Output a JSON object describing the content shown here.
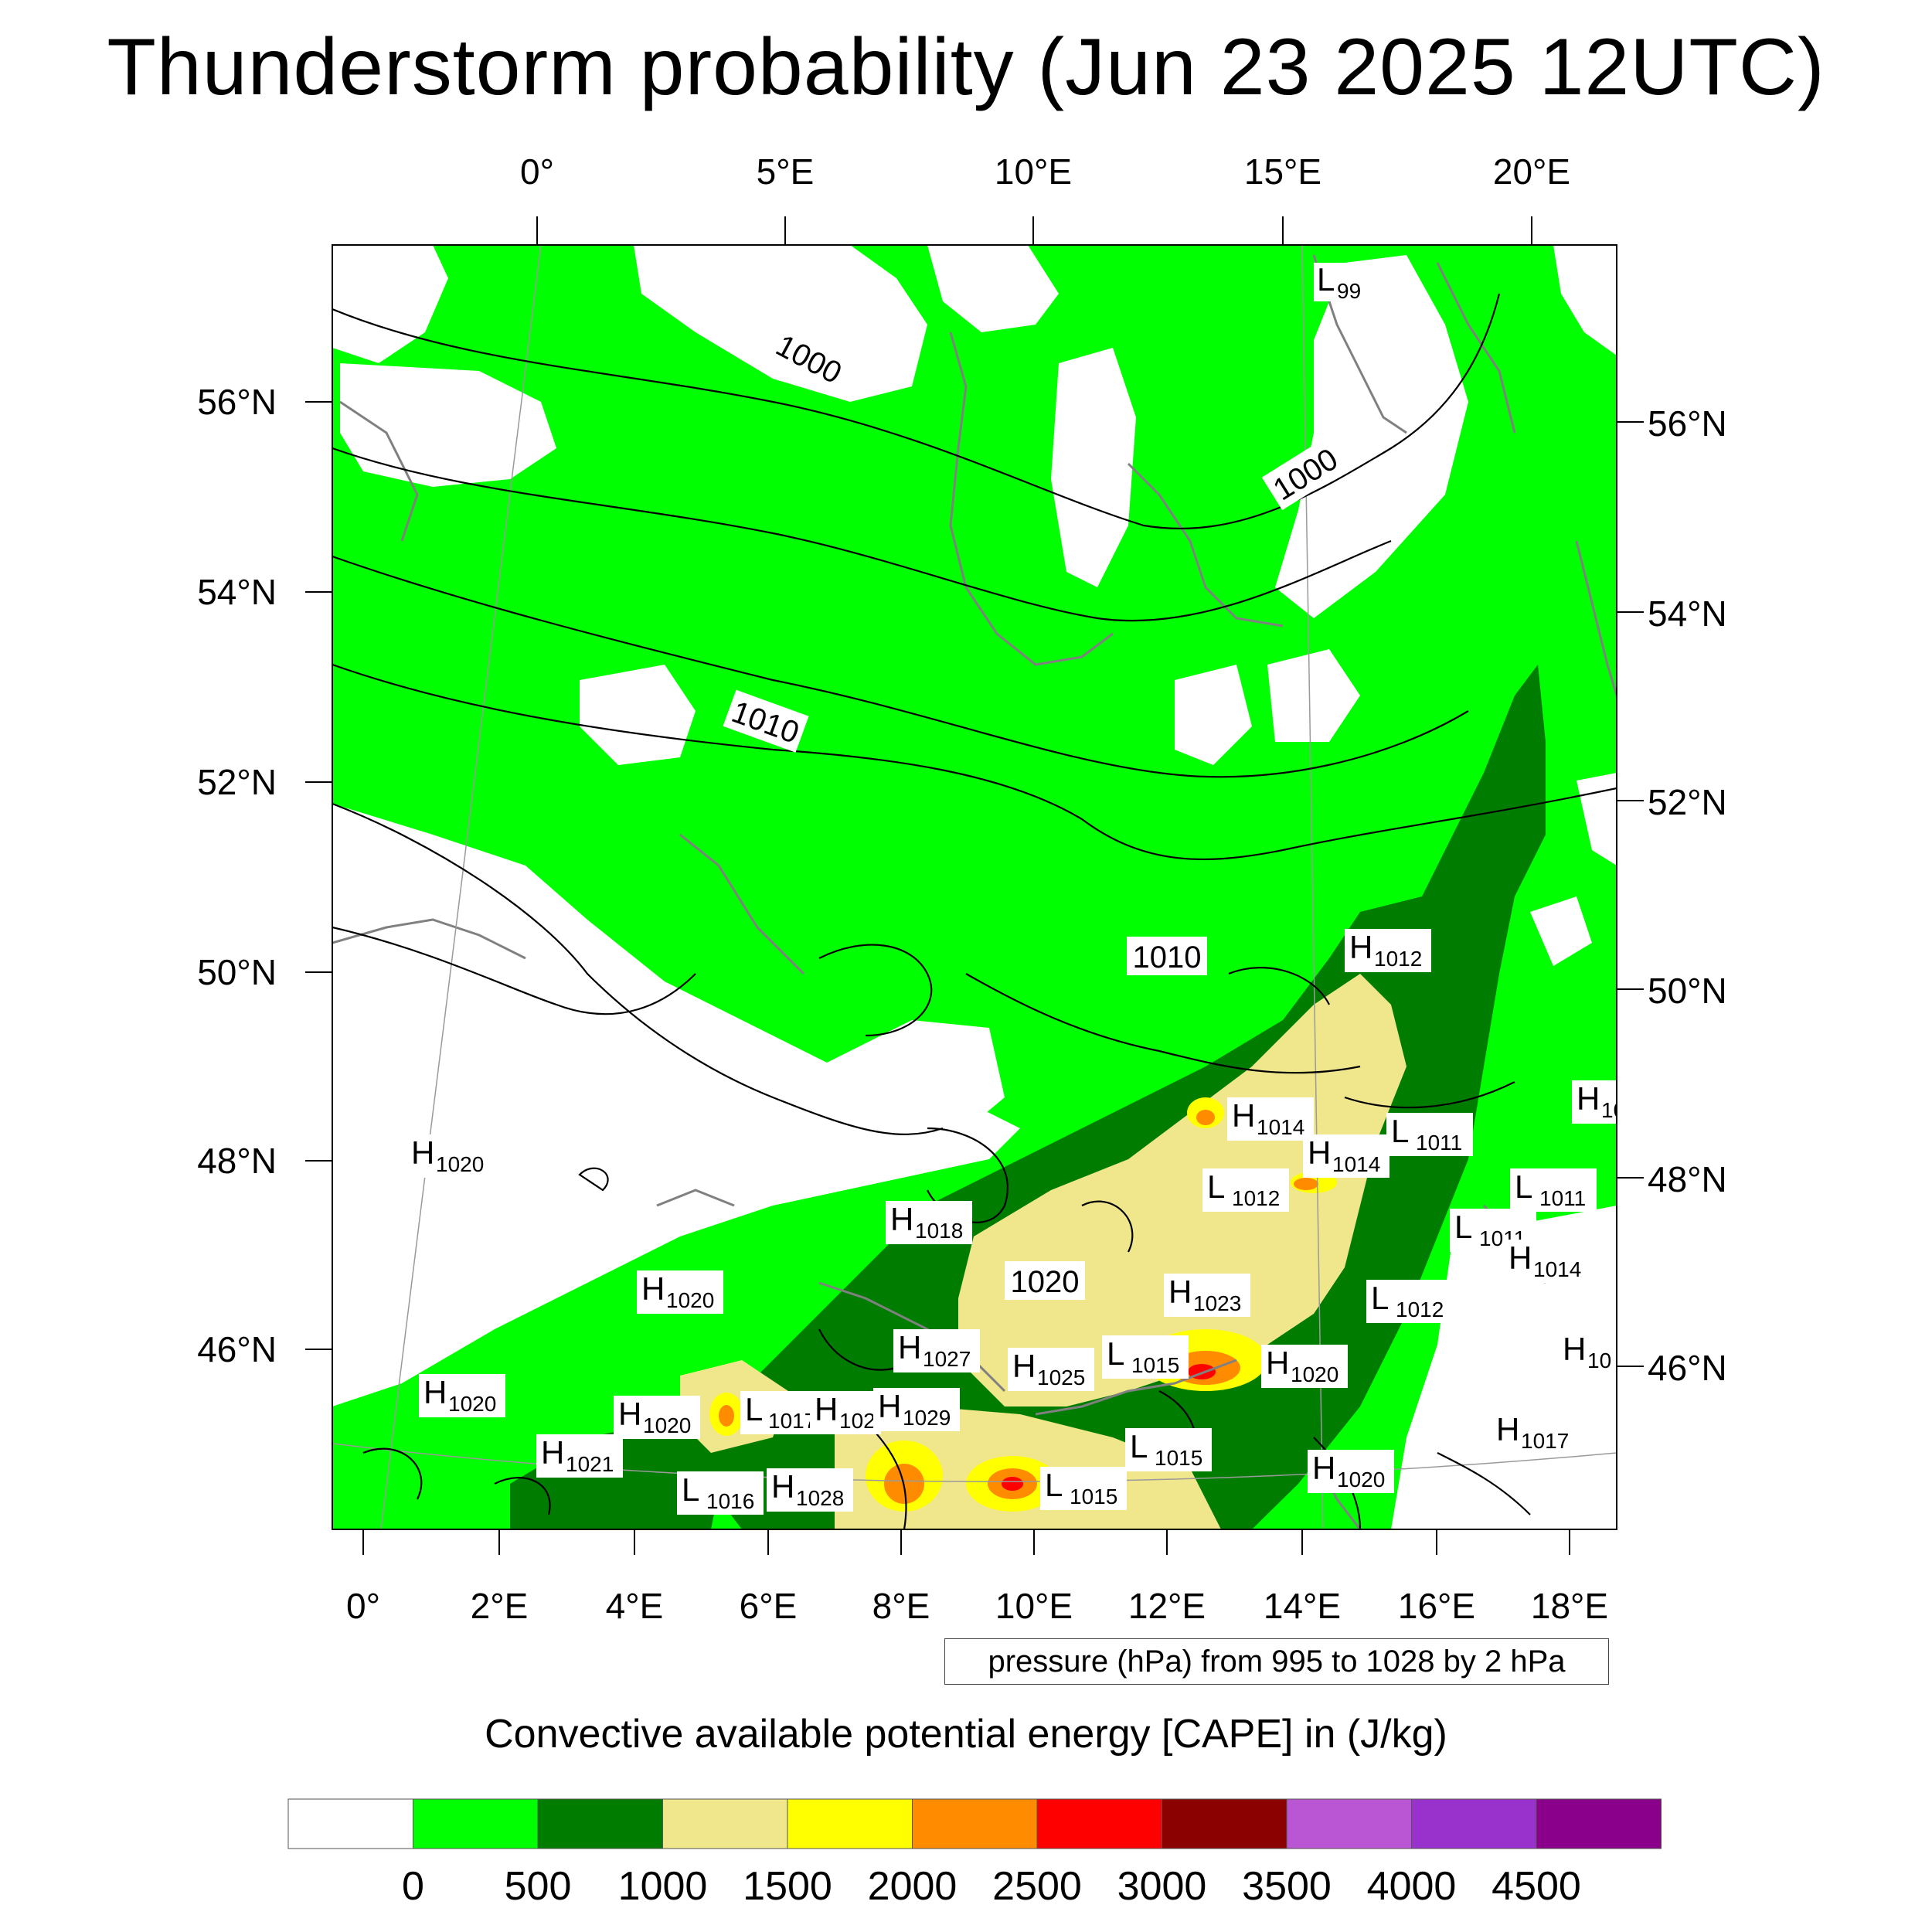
{
  "title": "Thunderstorm probability (Jun 23 2025 12UTC)",
  "map": {
    "top_lon_labels": [
      "0°",
      "5°E",
      "10°E",
      "15°E",
      "20°E"
    ],
    "bottom_lon_labels": [
      "0°",
      "2°E",
      "4°E",
      "6°E",
      "8°E",
      "10°E",
      "12°E",
      "14°E",
      "16°E",
      "18°E"
    ],
    "left_lat_labels": [
      "56°N",
      "54°N",
      "52°N",
      "50°N",
      "48°N",
      "46°N"
    ],
    "right_lat_labels": [
      "56°N",
      "54°N",
      "52°N",
      "50°N",
      "48°N",
      "46°N"
    ],
    "contour_labels": [
      "1000",
      "1000",
      "1010",
      "1010",
      "1020"
    ],
    "pressure_centers": [
      {
        "type": "L",
        "value": "99"
      },
      {
        "type": "H",
        "value": "1012"
      },
      {
        "type": "H",
        "value": "10"
      },
      {
        "type": "H",
        "value": "1014"
      },
      {
        "type": "L",
        "value": "1011"
      },
      {
        "type": "H",
        "value": "1014"
      },
      {
        "type": "H",
        "value": "1020"
      },
      {
        "type": "L",
        "value": "1012"
      },
      {
        "type": "L",
        "value": "1011"
      },
      {
        "type": "H",
        "value": "1018"
      },
      {
        "type": "L",
        "value": "1011"
      },
      {
        "type": "H",
        "value": "1014"
      },
      {
        "type": "H",
        "value": "1020"
      },
      {
        "type": "H",
        "value": "1023"
      },
      {
        "type": "L",
        "value": "1012"
      },
      {
        "type": "H",
        "value": "1027"
      },
      {
        "type": "H",
        "value": "1025"
      },
      {
        "type": "L",
        "value": "1015"
      },
      {
        "type": "H",
        "value": "1020"
      },
      {
        "type": "H",
        "value": "10"
      },
      {
        "type": "H",
        "value": "1020"
      },
      {
        "type": "H",
        "value": "1020"
      },
      {
        "type": "L",
        "value": "1017"
      },
      {
        "type": "H",
        "value": "102"
      },
      {
        "type": "H",
        "value": "1029"
      },
      {
        "type": "H",
        "value": "1017"
      },
      {
        "type": "H",
        "value": "1021"
      },
      {
        "type": "L",
        "value": "1015"
      },
      {
        "type": "H",
        "value": "1020"
      },
      {
        "type": "L",
        "value": "1016"
      },
      {
        "type": "H",
        "value": "1028"
      },
      {
        "type": "L",
        "value": "1015"
      }
    ]
  },
  "contour_info": "pressure (hPa) from 995 to 1028 by 2 hPa",
  "colorbar": {
    "title": "Convective available potential energy [CAPE] in (J/kg)",
    "colors": [
      "#ffffff",
      "#00ff00",
      "#007d00",
      "#f0e68c",
      "#ffff00",
      "#ff8c00",
      "#ff0000",
      "#8b0000",
      "#ba55d3",
      "#9932cc",
      "#8b008b"
    ],
    "tick_labels": [
      "0",
      "500",
      "1000",
      "1500",
      "2000",
      "2500",
      "3000",
      "3500",
      "4000",
      "4500"
    ]
  }
}
